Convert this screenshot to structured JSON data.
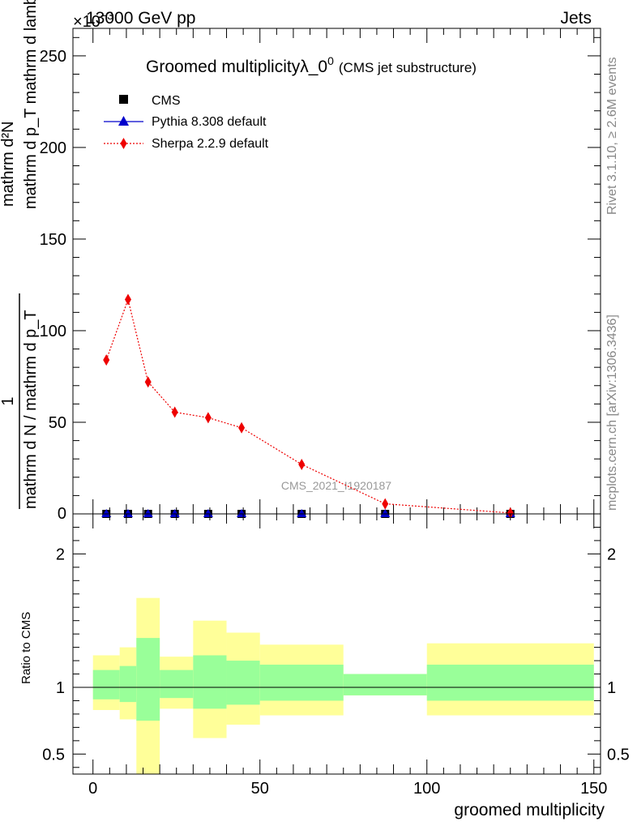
{
  "header": {
    "energy_label": "13000 GeV pp",
    "process_label": "Jets",
    "exponent_label": "×10",
    "exponent_power": "−3"
  },
  "side_labels": {
    "rivet": "Rivet 3.1.10, ≥ 2.6M events",
    "mcplots": "mcplots.cern.ch [arXiv:1306.3436]"
  },
  "watermark": "CMS_2021_I1920187",
  "chart_data": [
    {
      "type": "line",
      "title": "Groomed multiplicityλ_0",
      "title_sup": "0",
      "subtitle": "(CMS jet substructure)",
      "ylabel_numerator": "mathrm d²N",
      "ylabel_fraction_numerator": "1",
      "ylabel_denominator": "mathrm d N / mathrm d p_T mathrm d p_T mathrm d lambda",
      "ylabel_numerator_full": "mathrm d²N",
      "ylabel_denominator_full": "mathrm d p_T mathrm d lambda",
      "ylabel_left": "mathrm d N / mathrm d p_T",
      "xlim": [
        -6,
        152
      ],
      "ylim": [
        0,
        265
      ],
      "y_ticks": [
        50,
        100,
        150,
        200,
        250
      ],
      "y_tick_zero": "0",
      "legend_position": "top-left",
      "series": [
        {
          "name": "CMS",
          "color": "#000000",
          "marker": "square",
          "x": [
            4,
            10.5,
            16.5,
            24.5,
            34.5,
            44.5,
            62.5,
            87.5,
            125
          ],
          "y": [
            0,
            0,
            0,
            0,
            0,
            0,
            0,
            0,
            0
          ]
        },
        {
          "name": "Pythia 8.308 default",
          "color": "#0000cc",
          "marker": "triangle",
          "x": [
            4,
            10.5,
            16.5,
            24.5,
            34.5,
            44.5,
            62.5,
            87.5,
            125
          ],
          "y": [
            0,
            0,
            0,
            0,
            0,
            0,
            0,
            0,
            0
          ]
        },
        {
          "name": "Sherpa 2.2.9 default",
          "color": "#ee0000",
          "marker": "diamond",
          "line_style": "dotted",
          "x": [
            4,
            10.5,
            16.5,
            24.5,
            34.5,
            44.5,
            62.5,
            87.5,
            125
          ],
          "y": [
            84,
            117,
            72,
            55.5,
            52.5,
            47,
            27,
            5.5,
            0.5
          ]
        }
      ]
    },
    {
      "type": "area",
      "ylabel": "Ratio to CMS",
      "xlabel": "groomed multiplicity",
      "xlim": [
        -6,
        152
      ],
      "ylim": [
        0.35,
        2.3
      ],
      "x_ticks": [
        0,
        50,
        100,
        150
      ],
      "y_ticks": [
        0.5,
        1,
        2
      ],
      "y_tick_labels": [
        "0.5",
        "1",
        "2"
      ],
      "reference_line": 1,
      "bands": {
        "edges": [
          0,
          8,
          13,
          20,
          30,
          40,
          50,
          75,
          100,
          150
        ],
        "outer_color": "#ffff99",
        "inner_color": "#99ff99",
        "outer_lo": [
          0.83,
          0.76,
          0.35,
          0.84,
          0.62,
          0.72,
          0.79,
          0.94,
          0.79
        ],
        "outer_hi": [
          1.24,
          1.3,
          1.67,
          1.23,
          1.5,
          1.41,
          1.32,
          1.1,
          1.33
        ],
        "inner_lo": [
          0.91,
          0.89,
          0.75,
          0.92,
          0.84,
          0.87,
          0.9,
          0.94,
          0.9
        ],
        "inner_hi": [
          1.13,
          1.16,
          1.37,
          1.13,
          1.24,
          1.2,
          1.17,
          1.1,
          1.17
        ]
      }
    }
  ]
}
